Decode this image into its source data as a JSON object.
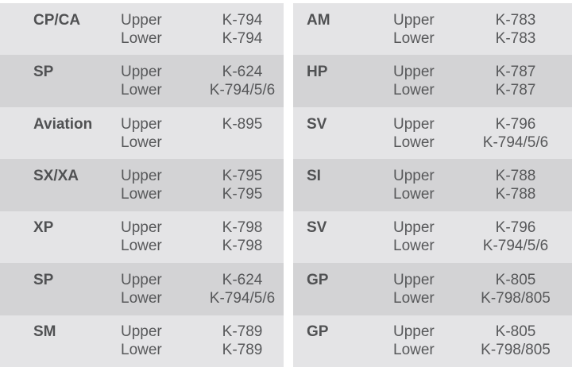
{
  "page": {
    "background": "#ffffff"
  },
  "colors": {
    "row_light": "#e4e4e6",
    "row_dark": "#d3d3d5",
    "text": "#57585a",
    "label_text": "#505153"
  },
  "row_labels": {
    "upper": "Upper",
    "lower": "Lower"
  },
  "tables": {
    "left": {
      "rows": [
        {
          "code": "CP/CA",
          "upper": "K-794",
          "lower": "K-794"
        },
        {
          "code": "SP",
          "upper": "K-624",
          "lower": "K-794/5/6"
        },
        {
          "code": "Aviation",
          "upper": "K-895",
          "lower": ""
        },
        {
          "code": "SX/XA",
          "upper": "K-795",
          "lower": "K-795"
        },
        {
          "code": "XP",
          "upper": "K-798",
          "lower": "K-798"
        },
        {
          "code": "SP",
          "upper": "K-624",
          "lower": "K-794/5/6"
        },
        {
          "code": "SM",
          "upper": "K-789",
          "lower": "K-789"
        }
      ]
    },
    "right": {
      "rows": [
        {
          "code": "AM",
          "upper": "K-783",
          "lower": "K-783"
        },
        {
          "code": "HP",
          "upper": "K-787",
          "lower": "K-787"
        },
        {
          "code": "SV",
          "upper": "K-796",
          "lower": "K-794/5/6"
        },
        {
          "code": "SI",
          "upper": "K-788",
          "lower": "K-788"
        },
        {
          "code": "SV",
          "upper": "K-796",
          "lower": "K-794/5/6"
        },
        {
          "code": "GP",
          "upper": "K-805",
          "lower": "K-798/805"
        },
        {
          "code": "GP",
          "upper": "K-805",
          "lower": "K-798/805"
        }
      ]
    }
  }
}
